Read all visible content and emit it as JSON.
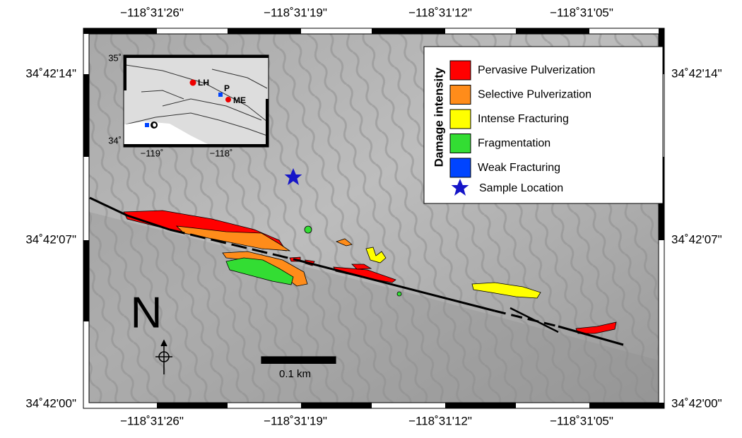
{
  "map": {
    "x_labels": [
      "−118˚31'26\"",
      "−118˚31'19\"",
      "−118˚31'12\"",
      "−118˚31'05\""
    ],
    "y_labels": [
      "34˚42'14\"",
      "34˚42'07\"",
      "34˚42'00\""
    ],
    "legend": {
      "title": "Damage intensity",
      "items": [
        {
          "label": "Pervasive Pulverization",
          "color": "#ff0000"
        },
        {
          "label": "Selective Pulverization",
          "color": "#ff8c1a"
        },
        {
          "label": "Intense Fracturing",
          "color": "#ffff00"
        },
        {
          "label": "Fragmentation",
          "color": "#33dd33"
        },
        {
          "label": "Weak Fracturing",
          "color": "#0044ff"
        }
      ],
      "sample_label": "Sample Location"
    },
    "inset": {
      "labels": [
        "LH",
        "P",
        "ME",
        "O"
      ],
      "x_labels": [
        "−119˚",
        "−118˚"
      ],
      "y_labels": [
        "35˚",
        "34˚"
      ]
    },
    "north": "N",
    "scale": "0.1 km"
  }
}
